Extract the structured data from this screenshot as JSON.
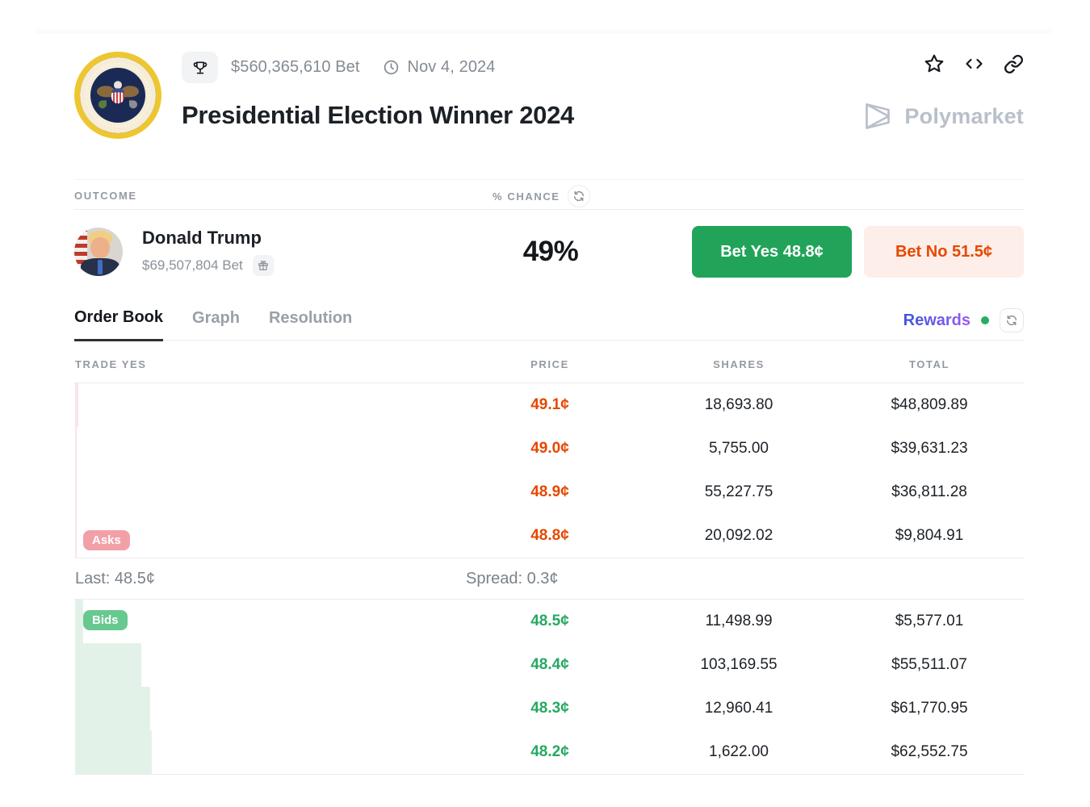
{
  "page": {
    "brand": "Polymarket"
  },
  "header": {
    "volume": "$560,365,610 Bet",
    "date": "Nov 4, 2024",
    "title": "Presidential Election Winner 2024"
  },
  "outcome": {
    "section_label": "OUTCOME",
    "chance_label": "% CHANCE",
    "name": "Donald Trump",
    "volume": "$69,507,804 Bet",
    "chance": "49%",
    "bet_yes": "Bet Yes 48.8¢",
    "bet_no": "Bet No 51.5¢"
  },
  "tabs": {
    "order_book": "Order Book",
    "graph": "Graph",
    "resolution": "Resolution",
    "rewards": "Rewards"
  },
  "order_book": {
    "trade_label": "TRADE YES",
    "price_header": "PRICE",
    "shares_header": "SHARES",
    "total_header": "TOTAL",
    "asks_badge": "Asks",
    "bids_badge": "Bids",
    "last": "Last: 48.5¢",
    "spread": "Spread: 0.3¢",
    "asks": [
      {
        "price": "49.1¢",
        "shares": "18,693.80",
        "total": "$48,809.89",
        "depth": 0.045
      },
      {
        "price": "49.0¢",
        "shares": "5,755.00",
        "total": "$39,631.23",
        "depth": 0.022
      },
      {
        "price": "48.9¢",
        "shares": "55,227.75",
        "total": "$36,811.28",
        "depth": 0.022
      },
      {
        "price": "48.8¢",
        "shares": "20,092.02",
        "total": "$9,804.91",
        "depth": 0.022
      }
    ],
    "bids": [
      {
        "price": "48.5¢",
        "shares": "11,498.99",
        "total": "$5,577.01",
        "depth": 0.105
      },
      {
        "price": "48.4¢",
        "shares": "103,169.55",
        "total": "$55,511.07",
        "depth": 0.863
      },
      {
        "price": "48.3¢",
        "shares": "12,960.41",
        "total": "$61,770.95",
        "depth": 0.979
      },
      {
        "price": "48.2¢",
        "shares": "1,622.00",
        "total": "$62,552.75",
        "depth": 1.0
      }
    ]
  },
  "colors": {
    "yes_green": "#21a459",
    "bid_green": "#27a862",
    "no_red": "#e64800",
    "no_bg": "#fdeee9",
    "asks_badge_bg": "#f2a0a8",
    "bids_badge_bg": "#67c98f",
    "ask_depth_bg": "#fbe4e7",
    "bid_depth_bg": "#e3f2e8",
    "rewards_gradient_start": "#3b55dd",
    "rewards_gradient_end": "#9a5cf0",
    "brand_gray": "#b9c0cb",
    "online_dot": "#27ae60"
  }
}
